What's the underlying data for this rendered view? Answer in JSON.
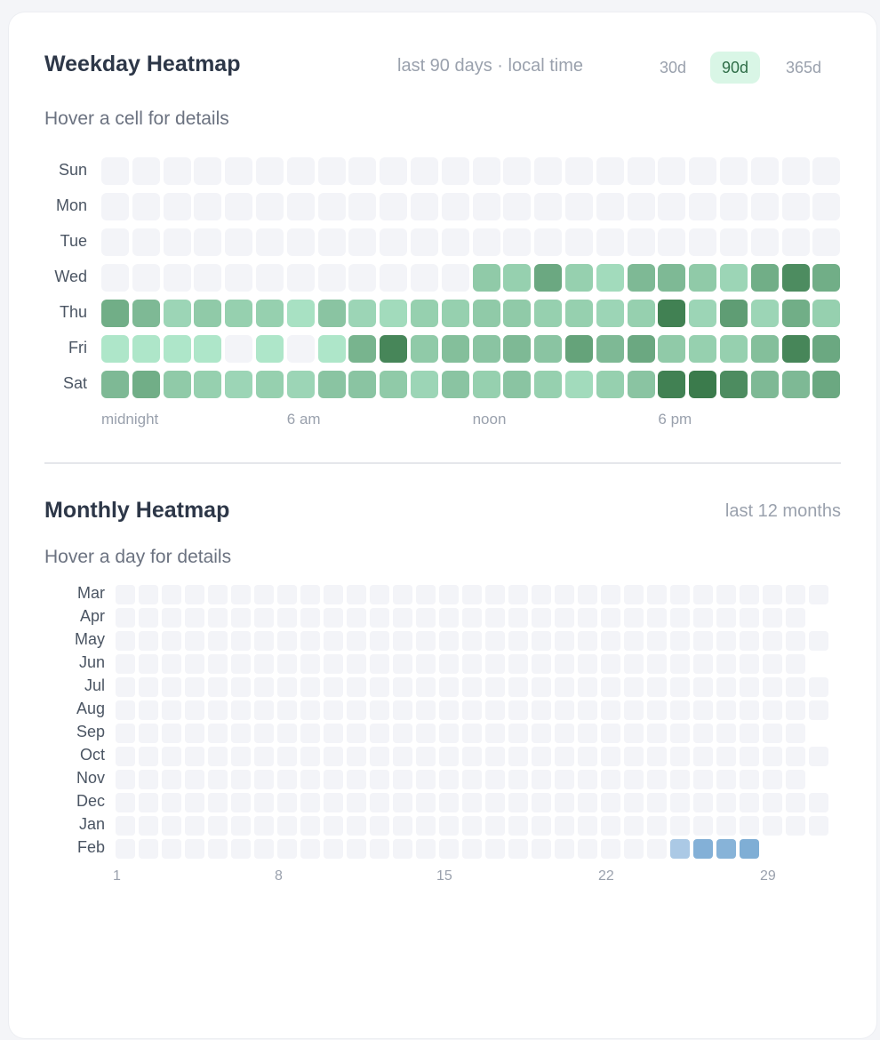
{
  "weekday": {
    "title": "Weekday Heatmap",
    "meta": "last 90 days · local time",
    "ranges": [
      "30d",
      "90d",
      "365d"
    ],
    "active_range": "90d",
    "hint": "Hover a cell for details",
    "days": [
      "Sun",
      "Mon",
      "Tue",
      "Wed",
      "Thu",
      "Fri",
      "Sat"
    ],
    "hour_labels": [
      {
        "label": "midnight",
        "hour": 0
      },
      {
        "label": "6 am",
        "hour": 6
      },
      {
        "label": "noon",
        "hour": 12
      },
      {
        "label": "6 pm",
        "hour": 18
      }
    ],
    "empty_color": "#f3f4f8",
    "low_color": "#b4ecd0",
    "high_color": "#3b7b4c",
    "intensity": [
      [
        null,
        null,
        null,
        null,
        null,
        null,
        null,
        null,
        null,
        null,
        null,
        null,
        null,
        null,
        null,
        null,
        null,
        null,
        null,
        null,
        null,
        null,
        null,
        null
      ],
      [
        null,
        null,
        null,
        null,
        null,
        null,
        null,
        null,
        null,
        null,
        null,
        null,
        null,
        null,
        null,
        null,
        null,
        null,
        null,
        null,
        null,
        null,
        null,
        null
      ],
      [
        null,
        null,
        null,
        null,
        null,
        null,
        null,
        null,
        null,
        null,
        null,
        null,
        null,
        null,
        null,
        null,
        null,
        null,
        null,
        null,
        null,
        null,
        null,
        null
      ],
      [
        null,
        null,
        null,
        null,
        null,
        null,
        null,
        null,
        null,
        null,
        null,
        null,
        0.3,
        0.25,
        0.6,
        0.25,
        0.15,
        0.45,
        0.45,
        0.3,
        0.2,
        0.55,
        0.85,
        0.55
      ],
      [
        0.55,
        0.45,
        0.2,
        0.3,
        0.25,
        0.25,
        0.1,
        0.35,
        0.2,
        0.15,
        0.25,
        0.25,
        0.3,
        0.3,
        0.25,
        0.25,
        0.2,
        0.25,
        0.95,
        0.2,
        0.7,
        0.2,
        0.55,
        0.25
      ],
      [
        0.05,
        0.05,
        0.05,
        0.05,
        null,
        0.05,
        null,
        0.05,
        0.5,
        0.9,
        0.3,
        0.4,
        0.35,
        0.45,
        0.35,
        0.65,
        0.45,
        0.6,
        0.3,
        0.25,
        0.25,
        0.4,
        0.9,
        0.6
      ],
      [
        0.45,
        0.55,
        0.3,
        0.25,
        0.2,
        0.25,
        0.2,
        0.35,
        0.35,
        0.3,
        0.2,
        0.35,
        0.25,
        0.35,
        0.25,
        0.15,
        0.25,
        0.35,
        0.95,
        1.0,
        0.85,
        0.45,
        0.45,
        0.6
      ]
    ]
  },
  "monthly": {
    "title": "Monthly Heatmap",
    "meta": "last 12 months",
    "hint": "Hover a day for details",
    "months": [
      {
        "name": "Mar",
        "days": 31
      },
      {
        "name": "Apr",
        "days": 30
      },
      {
        "name": "May",
        "days": 31
      },
      {
        "name": "Jun",
        "days": 30
      },
      {
        "name": "Jul",
        "days": 31
      },
      {
        "name": "Aug",
        "days": 31
      },
      {
        "name": "Sep",
        "days": 30
      },
      {
        "name": "Oct",
        "days": 31
      },
      {
        "name": "Nov",
        "days": 30
      },
      {
        "name": "Dec",
        "days": 31
      },
      {
        "name": "Jan",
        "days": 31
      },
      {
        "name": "Feb",
        "days": 28,
        "activity": {
          "25": 0.3,
          "26": 0.8,
          "27": 0.75,
          "28": 0.85
        }
      }
    ],
    "day_labels": [
      "1",
      "8",
      "15",
      "22",
      "29"
    ],
    "empty_color": "#f3f4f8",
    "low_color": "#c3d8ee",
    "high_color": "#73a6d1"
  }
}
